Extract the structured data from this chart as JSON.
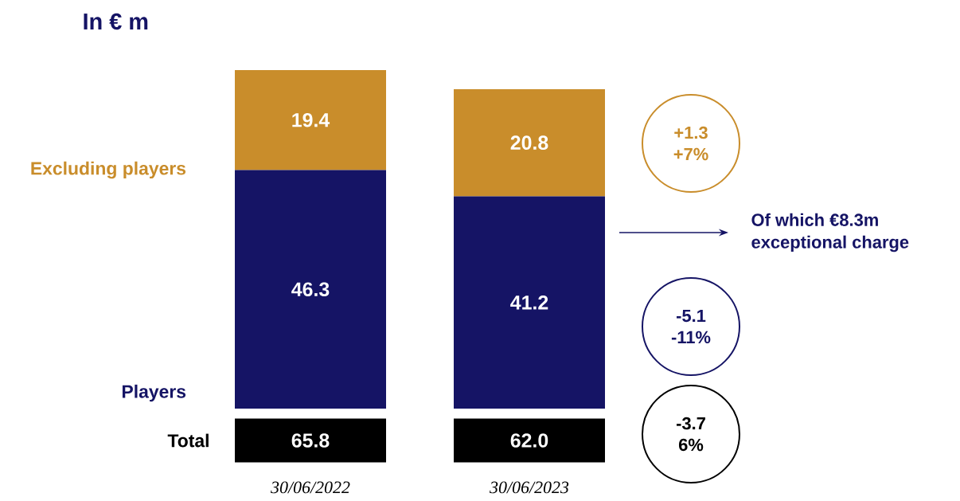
{
  "chart_data": {
    "type": "bar",
    "title": "In € m",
    "stacked": true,
    "data_labels": true,
    "categories": [
      "30/06/2022",
      "30/06/2023"
    ],
    "series": [
      {
        "name": "Players",
        "color": "#151465",
        "values": [
          46.3,
          41.2
        ]
      },
      {
        "name": "Excluding players",
        "color": "#c98d2b",
        "values": [
          19.4,
          20.8
        ]
      }
    ],
    "totals": [
      "65.8",
      "62.0"
    ],
    "annotations": [
      "Total",
      "+1.3 +7%",
      "-5.1 -11%",
      "-3.7 6%",
      "Of which €8.3m exceptional charge"
    ]
  }
}
